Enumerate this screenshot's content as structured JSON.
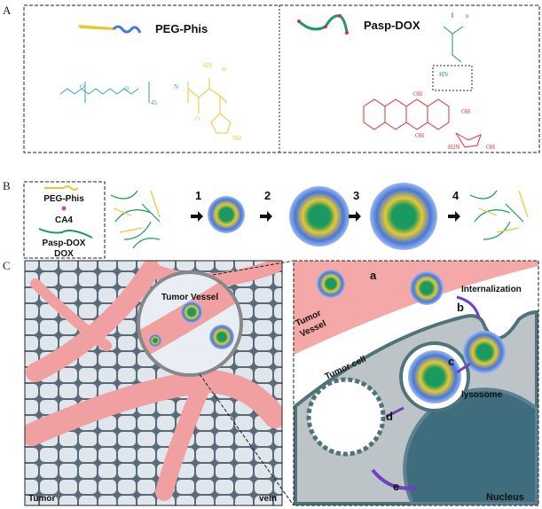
{
  "panels": {
    "a": {
      "label": "A",
      "peg_phis": {
        "title": "PEG-Phis",
        "subscript_peg": "45",
        "subscript_his": "m",
        "atoms": [
          "O",
          "O",
          "H",
          "N",
          "HN",
          "O",
          "N",
          "NH"
        ]
      },
      "pasp_dox": {
        "title": "Pasp-DOX",
        "subscript": "n",
        "atoms": [
          "O",
          "H",
          "N",
          "O",
          "HN",
          "N",
          "O",
          "OH",
          "OH",
          "OH",
          "O",
          "OH",
          "O",
          "O",
          "O",
          "H2N",
          "OH"
        ]
      }
    },
    "b": {
      "label": "B",
      "legend": [
        "PEG-Phis",
        "CA4",
        "Pasp-DOX",
        "DOX"
      ],
      "steps": [
        "1",
        "2",
        "3",
        "4"
      ]
    },
    "c": {
      "label": "C",
      "left": {
        "tumor": "Tumor",
        "vein": "vein",
        "vessel": "Tumor Vessel"
      },
      "right": {
        "tumor_vessel_line1": "Tumor",
        "tumor_vessel_line2": "Vessel",
        "internalization": "Internalization",
        "tumor_cell": "Tumor cell",
        "lysosome": "lysosome",
        "nucleus": "Nucleus",
        "steps": [
          "a",
          "b",
          "c",
          "d",
          "e"
        ]
      }
    }
  },
  "colors": {
    "peg": "#4a78d8",
    "phis": "#e8c830",
    "pasp": "#1a9a60",
    "dox": "#e03030",
    "ca4": "#d040d0",
    "vessel": "#f0a0a0",
    "cell": "#b8c0c4",
    "nucleus": "#3e6e7e"
  }
}
